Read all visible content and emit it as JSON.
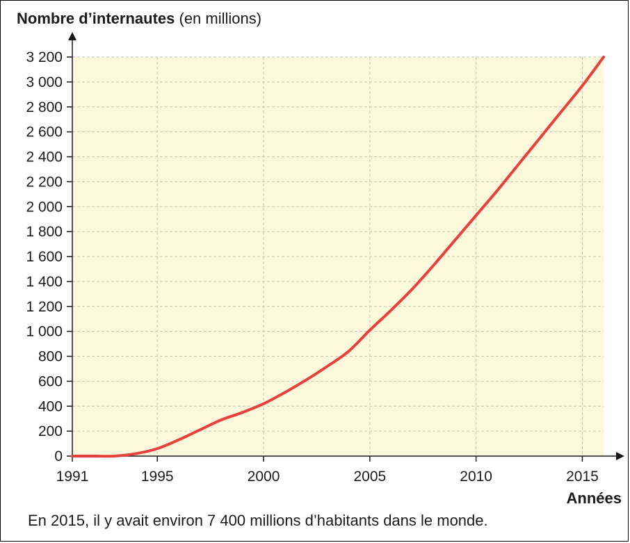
{
  "chart_data": {
    "type": "line",
    "title": "",
    "ylabel_bold": "Nombre d’internautes",
    "ylabel_unit": "(en millions)",
    "xlabel": "Années",
    "xlim": [
      1991,
      2016
    ],
    "ylim": [
      0,
      3200
    ],
    "x_ticks": [
      1991,
      1995,
      2000,
      2005,
      2010,
      2015
    ],
    "x_tick_labels": [
      "1991",
      "1995",
      "2000",
      "2005",
      "2010",
      "2015"
    ],
    "y_ticks": [
      0,
      200,
      400,
      600,
      800,
      1000,
      1200,
      1400,
      1600,
      1800,
      2000,
      2200,
      2400,
      2600,
      2800,
      3000,
      3200
    ],
    "y_tick_labels": [
      "0",
      "200",
      "400",
      "600",
      "800",
      "1 000",
      "1 200",
      "1 400",
      "1 600",
      "1 800",
      "2 000",
      "2 200",
      "2 400",
      "2 600",
      "2 800",
      "3 000",
      "3 200"
    ],
    "grid": true,
    "plot_background": "#fbf8dc",
    "grid_color": "#c9c6b6",
    "series": [
      {
        "color": "#e8403a",
        "x": [
          1991,
          1992,
          1993,
          1994,
          1995,
          1996,
          1997,
          1998,
          1999,
          2000,
          2001,
          2002,
          2003,
          2004,
          2005,
          2006,
          2007,
          2008,
          2009,
          2010,
          2011,
          2012,
          2013,
          2014,
          2015,
          2016
        ],
        "y": [
          0,
          0,
          0,
          20,
          60,
          130,
          210,
          290,
          350,
          420,
          510,
          610,
          720,
          840,
          1010,
          1170,
          1340,
          1530,
          1730,
          1930,
          2130,
          2340,
          2550,
          2760,
          2970,
          3200
        ]
      }
    ]
  },
  "caption": "En 2015, il y avait environ 7 400 millions d’habitants dans le monde."
}
